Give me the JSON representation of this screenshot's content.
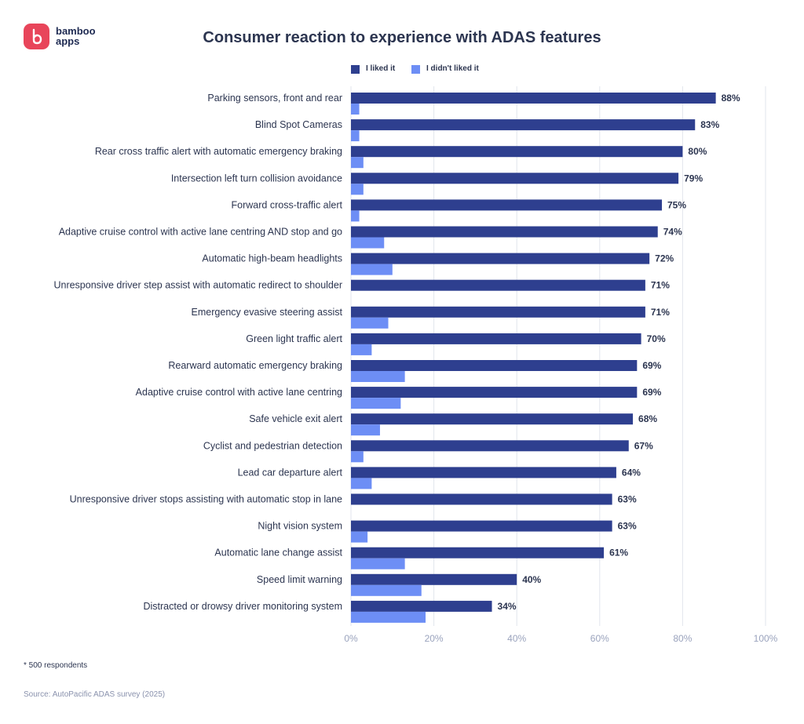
{
  "brand": {
    "line1": "bamboo",
    "line2": "apps"
  },
  "colors": {
    "liked": "#2e3f8f",
    "disliked": "#6d8ef5",
    "grid": "#e2e5ec",
    "axis_text": "#9aa3bd",
    "label_text": "#2c3550",
    "logo": "#e8455a"
  },
  "footnote": "* 500 respondents",
  "source": "Source: AutoPacific ADAS survey (2025)",
  "chart_data": {
    "type": "bar",
    "orientation": "horizontal",
    "title": "Consumer reaction to experience with ADAS features",
    "xlim": [
      0,
      100
    ],
    "xticks": [
      "0%",
      "20%",
      "40%",
      "60%",
      "80%",
      "100%"
    ],
    "grid": true,
    "legend_position": "top-center",
    "categories": [
      "Parking sensors, front and rear",
      "Blind Spot Cameras",
      "Rear cross traffic alert with automatic emergency braking",
      "Intersection left turn collision avoidance",
      "Forward cross-traffic alert",
      "Adaptive cruise control with active lane centring AND stop and go",
      "Automatic high-beam headlights",
      "Unresponsive driver step assist with automatic redirect to shoulder",
      "Emergency evasive steering assist",
      "Green light traffic alert",
      "Rearward automatic emergency braking",
      "Adaptive cruise control with active lane centring",
      "Safe vehicle exit alert",
      "Cyclist and pedestrian detection",
      "Lead car departure alert",
      "Unresponsive driver stops assisting with automatic stop in lane",
      "Night vision system",
      "Automatic lane change assist",
      "Speed limit warning",
      "Distracted or drowsy driver monitoring system"
    ],
    "series": [
      {
        "name": "I liked it",
        "values": [
          88,
          83,
          80,
          79,
          75,
          74,
          72,
          71,
          71,
          70,
          69,
          69,
          68,
          67,
          64,
          63,
          63,
          61,
          40,
          34
        ],
        "labels": [
          "88%",
          "83%",
          "80%",
          "79%",
          "75%",
          "74%",
          "72%",
          "71%",
          "71%",
          "70%",
          "69%",
          "69%",
          "68%",
          "67%",
          "64%",
          "63%",
          "63%",
          "61%",
          "40%",
          "34%"
        ]
      },
      {
        "name": "I didn't liked it",
        "values": [
          2,
          2,
          3,
          3,
          2,
          8,
          10,
          0,
          9,
          5,
          13,
          12,
          7,
          3,
          5,
          0,
          4,
          13,
          17,
          18
        ]
      }
    ]
  }
}
